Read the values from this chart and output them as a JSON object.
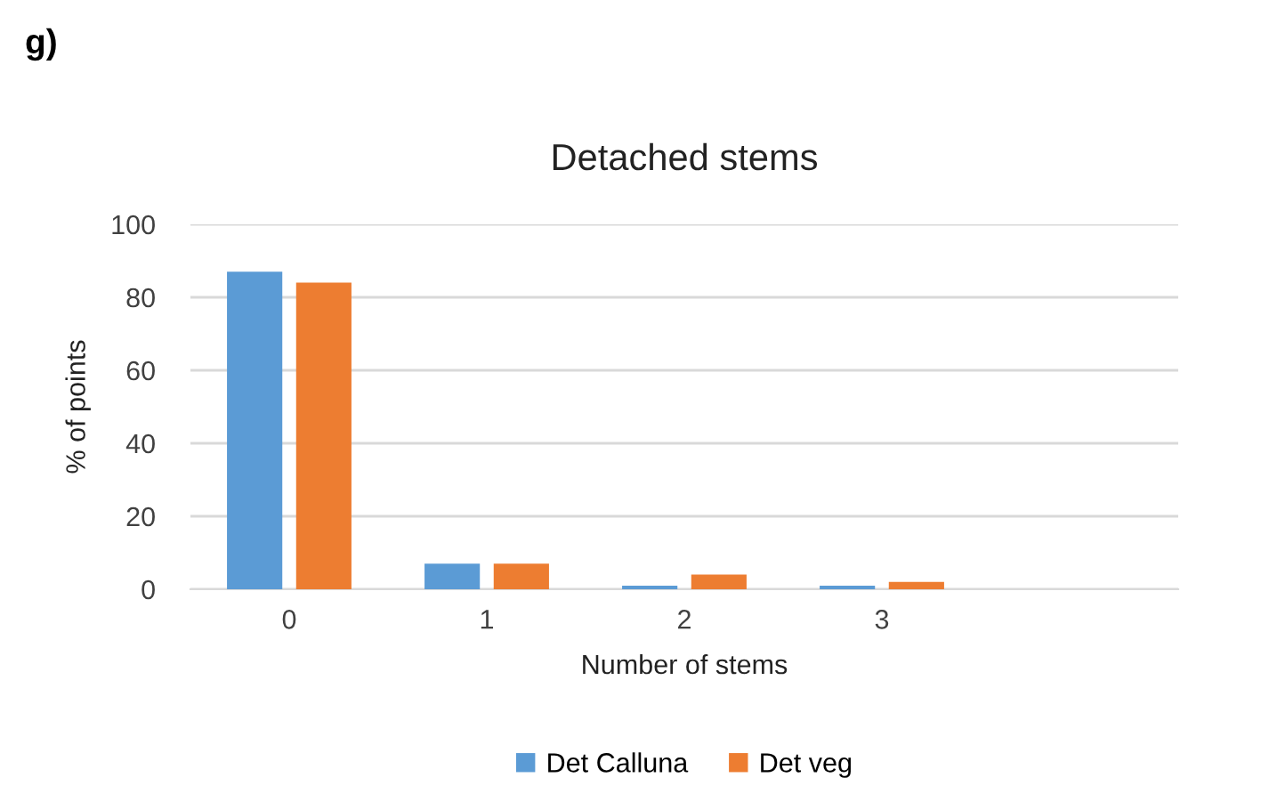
{
  "chart_data": {
    "type": "bar",
    "title": "Detached stems",
    "xlabel": "Number of stems",
    "ylabel": "% of points",
    "categories": [
      "0",
      "1",
      "2",
      "3",
      null
    ],
    "series": [
      {
        "name": "Det Calluna",
        "color": "#5b9bd5",
        "values": [
          87,
          7,
          1,
          1,
          null
        ]
      },
      {
        "name": "Det veg",
        "color": "#ed7d31",
        "values": [
          84,
          7,
          4,
          2,
          null
        ]
      }
    ],
    "ylim": [
      0,
      100
    ],
    "yticks": [
      0,
      20,
      40,
      60,
      80,
      100
    ],
    "grid": "y",
    "legend": "bottom",
    "annotations": [
      "g)"
    ]
  }
}
